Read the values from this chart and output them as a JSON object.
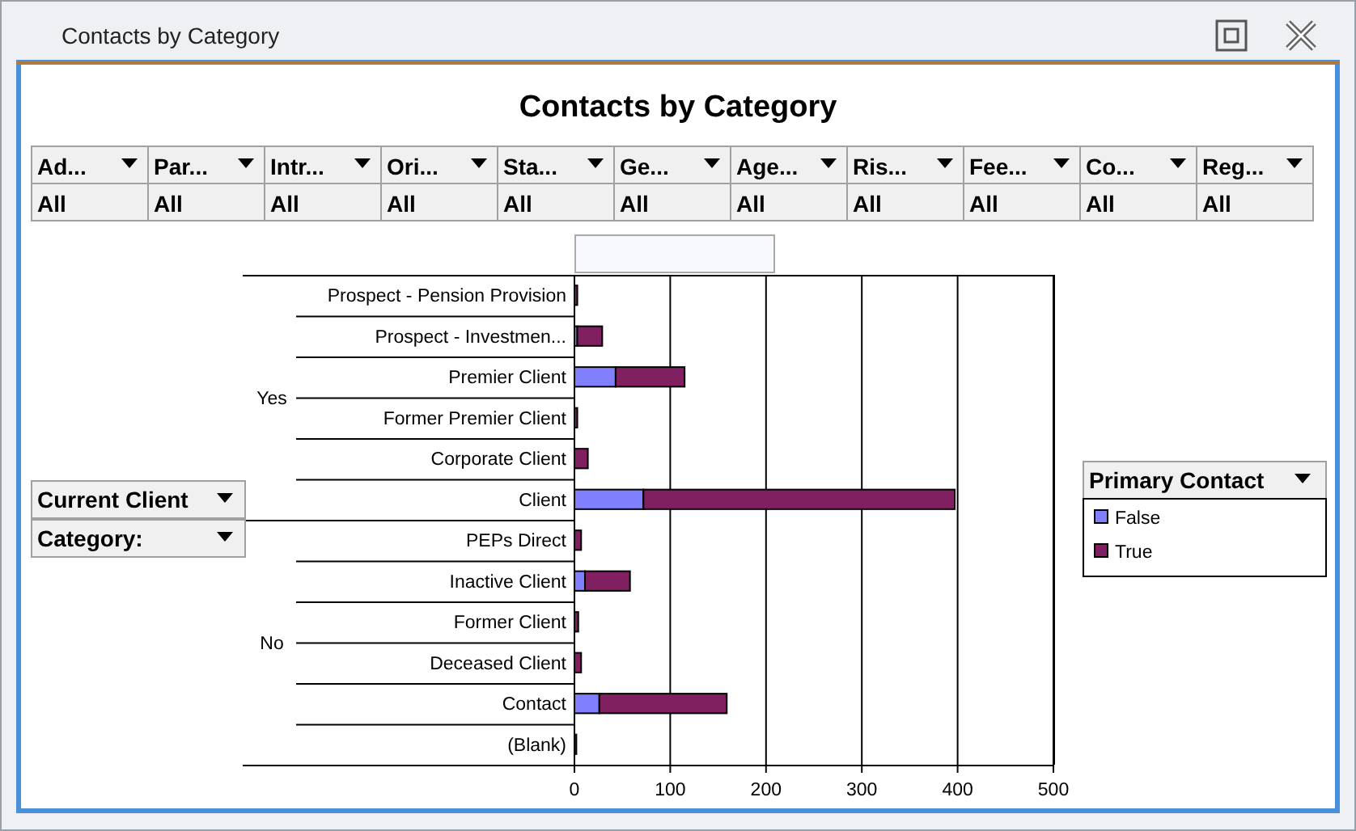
{
  "chart_data": {
    "type": "bar",
    "orientation": "horizontal",
    "stacked": true,
    "title": "Contacts by Category",
    "legend_title": "Primary Contact",
    "categories": [
      "Prospect - Pension Provision",
      "Prospect - Investmen...",
      "Premier Client",
      "Former Premier Client",
      "Corporate Client",
      "Client",
      "PEPs Direct",
      "Inactive Client",
      "Former Client",
      "Deceased Client",
      "Contact",
      "(Blank)"
    ],
    "series": [
      {
        "name": "False",
        "color": "#8080ff",
        "values": [
          null,
          3,
          43,
          null,
          null,
          72,
          null,
          11,
          null,
          null,
          26,
          null
        ]
      },
      {
        "name": "True",
        "color": "#802060",
        "values": [
          3,
          26,
          72,
          3,
          14,
          325,
          7,
          47,
          4,
          7,
          133,
          2
        ]
      }
    ],
    "xlim": [
      0,
      500
    ],
    "xticks": [
      0,
      100,
      200,
      300,
      400,
      500
    ],
    "grid": "x",
    "legend": "right",
    "annotations": [
      "Contacts by Category",
      "Current Client",
      "Category:",
      "Ad...",
      "Par...",
      "Intr...",
      "Ori...",
      "Sta...",
      "Ge...",
      "Age...",
      "Ris...",
      "Fee...",
      "Co...",
      "Reg...",
      "All",
      "All",
      "All",
      "All",
      "All",
      "All",
      "All",
      "All",
      "All",
      "All",
      "All",
      "Yes",
      "No"
    ]
  }
}
